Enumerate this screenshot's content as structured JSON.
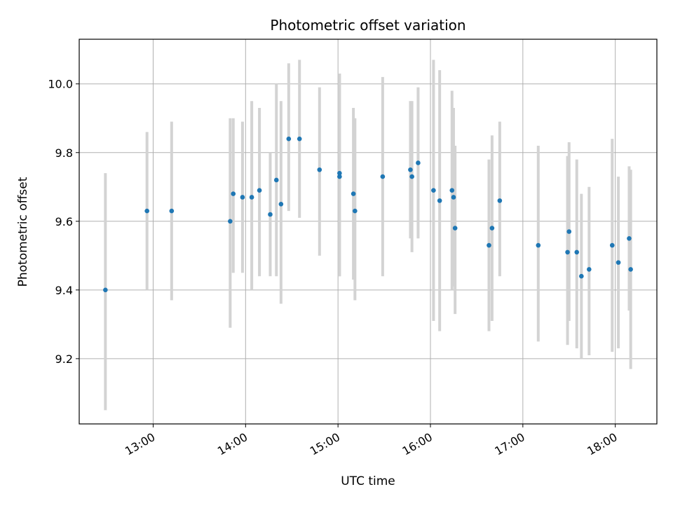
{
  "chart_data": {
    "type": "scatter",
    "title": "Photometric offset variation",
    "xlabel": "UTC time",
    "ylabel": "Photometric offset",
    "x_tick_labels": [
      "13:00",
      "14:00",
      "15:00",
      "16:00",
      "17:00",
      "18:00"
    ],
    "y_tick_labels": [
      "9.2",
      "9.4",
      "9.6",
      "9.8",
      "10.0"
    ],
    "y_ticks": [
      9.2,
      9.4,
      9.6,
      9.8,
      10.0
    ],
    "x_ticks": [
      "13:00",
      "14:00",
      "15:00",
      "16:00",
      "17:00",
      "18:00"
    ],
    "xlim": [
      "12:12",
      "18:27"
    ],
    "ylim": [
      9.01,
      10.13
    ],
    "grid": true,
    "marker_color": "#1f77b4",
    "errorbar_color": "#d3d3d3",
    "points": [
      {
        "x": "12:29",
        "y": 9.4,
        "y_low": 9.05,
        "y_high": 9.74
      },
      {
        "x": "12:56",
        "y": 9.63,
        "y_low": 9.4,
        "y_high": 9.86
      },
      {
        "x": "13:12",
        "y": 9.63,
        "y_low": 9.37,
        "y_high": 9.89
      },
      {
        "x": "13:50",
        "y": 9.6,
        "y_low": 9.29,
        "y_high": 9.9
      },
      {
        "x": "13:52",
        "y": 9.68,
        "y_low": 9.45,
        "y_high": 9.9
      },
      {
        "x": "13:58",
        "y": 9.67,
        "y_low": 9.45,
        "y_high": 9.89
      },
      {
        "x": "14:04",
        "y": 9.67,
        "y_low": 9.4,
        "y_high": 9.95
      },
      {
        "x": "14:09",
        "y": 9.69,
        "y_low": 9.44,
        "y_high": 9.93
      },
      {
        "x": "14:16",
        "y": 9.62,
        "y_low": 9.44,
        "y_high": 9.8
      },
      {
        "x": "14:20",
        "y": 9.72,
        "y_low": 9.44,
        "y_high": 10.0
      },
      {
        "x": "14:23",
        "y": 9.65,
        "y_low": 9.36,
        "y_high": 9.95
      },
      {
        "x": "14:28",
        "y": 9.84,
        "y_low": 9.63,
        "y_high": 10.06
      },
      {
        "x": "14:35",
        "y": 9.84,
        "y_low": 9.61,
        "y_high": 10.07
      },
      {
        "x": "14:48",
        "y": 9.75,
        "y_low": 9.5,
        "y_high": 9.99
      },
      {
        "x": "15:01",
        "y": 9.73,
        "y_low": 9.44,
        "y_high": 10.03
      },
      {
        "x": "15:01",
        "y": 9.74,
        "y_low": 9.44,
        "y_high": 10.03
      },
      {
        "x": "15:10",
        "y": 9.68,
        "y_low": 9.43,
        "y_high": 9.93
      },
      {
        "x": "15:11",
        "y": 9.63,
        "y_low": 9.37,
        "y_high": 9.9
      },
      {
        "x": "15:29",
        "y": 9.73,
        "y_low": 9.44,
        "y_high": 10.02
      },
      {
        "x": "15:47",
        "y": 9.75,
        "y_low": 9.55,
        "y_high": 9.95
      },
      {
        "x": "15:48",
        "y": 9.73,
        "y_low": 9.51,
        "y_high": 9.95
      },
      {
        "x": "15:52",
        "y": 9.77,
        "y_low": 9.55,
        "y_high": 9.99
      },
      {
        "x": "16:02",
        "y": 9.69,
        "y_low": 9.31,
        "y_high": 10.07
      },
      {
        "x": "16:06",
        "y": 9.66,
        "y_low": 9.28,
        "y_high": 10.04
      },
      {
        "x": "16:14",
        "y": 9.69,
        "y_low": 9.4,
        "y_high": 9.98
      },
      {
        "x": "16:15",
        "y": 9.67,
        "y_low": 9.41,
        "y_high": 9.93
      },
      {
        "x": "16:16",
        "y": 9.58,
        "y_low": 9.33,
        "y_high": 9.82
      },
      {
        "x": "16:38",
        "y": 9.53,
        "y_low": 9.28,
        "y_high": 9.78
      },
      {
        "x": "16:40",
        "y": 9.58,
        "y_low": 9.31,
        "y_high": 9.85
      },
      {
        "x": "16:45",
        "y": 9.66,
        "y_low": 9.44,
        "y_high": 9.89
      },
      {
        "x": "17:10",
        "y": 9.53,
        "y_low": 9.25,
        "y_high": 9.82
      },
      {
        "x": "17:29",
        "y": 9.51,
        "y_low": 9.24,
        "y_high": 9.79
      },
      {
        "x": "17:30",
        "y": 9.57,
        "y_low": 9.31,
        "y_high": 9.83
      },
      {
        "x": "17:35",
        "y": 9.51,
        "y_low": 9.23,
        "y_high": 9.78
      },
      {
        "x": "17:38",
        "y": 9.44,
        "y_low": 9.2,
        "y_high": 9.68
      },
      {
        "x": "17:43",
        "y": 9.46,
        "y_low": 9.21,
        "y_high": 9.7
      },
      {
        "x": "17:58",
        "y": 9.53,
        "y_low": 9.22,
        "y_high": 9.84
      },
      {
        "x": "18:02",
        "y": 9.48,
        "y_low": 9.23,
        "y_high": 9.73
      },
      {
        "x": "18:09",
        "y": 9.55,
        "y_low": 9.34,
        "y_high": 9.76
      },
      {
        "x": "18:10",
        "y": 9.46,
        "y_low": 9.17,
        "y_high": 9.75
      }
    ]
  }
}
